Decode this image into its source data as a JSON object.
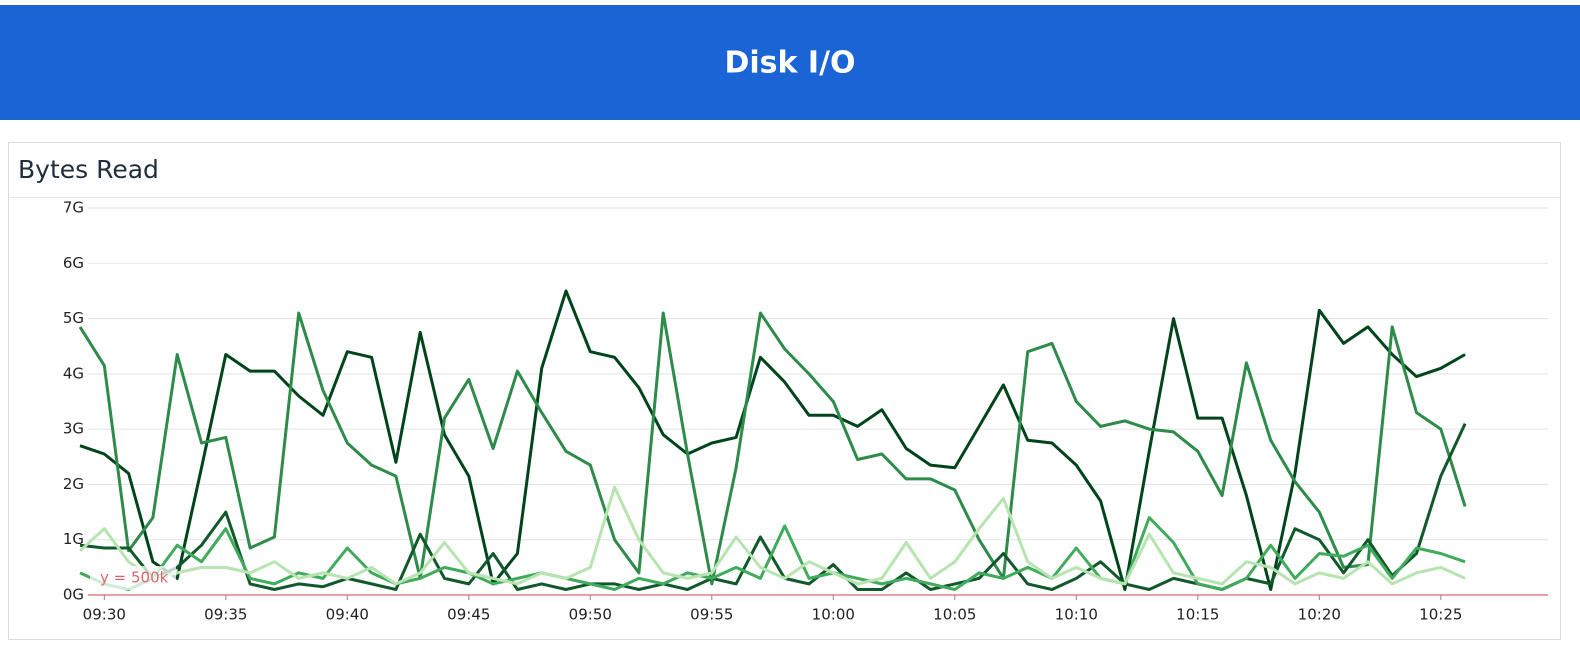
{
  "header": {
    "title": "Disk I/O"
  },
  "chart_data": {
    "type": "line",
    "title": "Bytes Read",
    "x": [
      "09:29",
      "09:30",
      "09:31",
      "09:32",
      "09:33",
      "09:34",
      "09:35",
      "09:36",
      "09:37",
      "09:38",
      "09:39",
      "09:40",
      "09:41",
      "09:42",
      "09:43",
      "09:44",
      "09:45",
      "09:46",
      "09:47",
      "09:48",
      "09:49",
      "09:50",
      "09:51",
      "09:52",
      "09:53",
      "09:54",
      "09:55",
      "09:56",
      "09:57",
      "09:58",
      "09:59",
      "10:00",
      "10:01",
      "10:02",
      "10:03",
      "10:04",
      "10:05",
      "10:06",
      "10:07",
      "10:08",
      "10:09",
      "10:10",
      "10:11",
      "10:12",
      "10:13",
      "10:14",
      "10:15",
      "10:16",
      "10:17",
      "10:18",
      "10:19",
      "10:20",
      "10:21",
      "10:22",
      "10:23",
      "10:24",
      "10:25",
      "10:26"
    ],
    "xticks": [
      "09:30",
      "09:35",
      "09:40",
      "09:45",
      "09:50",
      "09:55",
      "10:00",
      "10:05",
      "10:10",
      "10:15",
      "10:20",
      "10:25"
    ],
    "ylim": [
      0,
      7
    ],
    "yticks": [
      {
        "value": 0,
        "label": "0G"
      },
      {
        "value": 1,
        "label": "1G"
      },
      {
        "value": 2,
        "label": "2G"
      },
      {
        "value": 3,
        "label": "3G"
      },
      {
        "value": 4,
        "label": "4G"
      },
      {
        "value": 5,
        "label": "5G"
      },
      {
        "value": 6,
        "label": "6G"
      },
      {
        "value": 7,
        "label": "7G"
      }
    ],
    "grid": true,
    "annotation": {
      "text": "y = 500k",
      "value": 0.0005,
      "color": "#e0646e"
    },
    "series": [
      {
        "color": "#00441b",
        "values": [
          2.7,
          2.55,
          2.2,
          0.6,
          0.3,
          2.3,
          4.35,
          4.05,
          4.05,
          3.6,
          3.25,
          4.4,
          4.3,
          2.4,
          4.75,
          2.9,
          2.15,
          0.2,
          0.75,
          4.1,
          5.5,
          4.4,
          4.3,
          3.75,
          2.9,
          2.55,
          2.75,
          2.85,
          4.3,
          3.85,
          3.25,
          3.25,
          3.05,
          3.35,
          2.65,
          2.35,
          2.3,
          3.05,
          3.8,
          2.8,
          2.75,
          2.35,
          1.7,
          0.1,
          2.6,
          5.0,
          3.2,
          3.2,
          1.8,
          0.1,
          2.2,
          5.15,
          4.55,
          4.85,
          4.35,
          3.95,
          4.1,
          4.35
        ]
      },
      {
        "color": "#2e8b4a",
        "values": [
          4.85,
          4.15,
          0.8,
          1.4,
          4.35,
          2.75,
          2.85,
          0.85,
          1.05,
          5.1,
          3.7,
          2.75,
          2.35,
          2.15,
          0.3,
          3.2,
          3.9,
          2.65,
          4.05,
          3.3,
          2.6,
          2.35,
          1.0,
          0.4,
          5.1,
          2.55,
          0.2,
          2.3,
          5.1,
          4.45,
          4.0,
          3.5,
          2.45,
          2.55,
          2.1,
          2.1,
          1.9,
          1.0,
          0.3,
          4.4,
          4.55,
          3.5,
          3.05,
          3.15,
          3.0,
          2.95,
          2.6,
          1.8,
          4.2,
          2.8,
          2.05,
          1.5,
          0.5,
          0.55,
          4.85,
          3.3,
          3.0,
          1.6
        ]
      },
      {
        "color": "#11592a",
        "values": [
          0.9,
          0.85,
          0.85,
          0.3,
          0.5,
          0.9,
          1.5,
          0.2,
          0.1,
          0.2,
          0.15,
          0.3,
          0.2,
          0.1,
          1.1,
          0.3,
          0.2,
          0.75,
          0.1,
          0.2,
          0.1,
          0.2,
          0.2,
          0.1,
          0.2,
          0.1,
          0.3,
          0.2,
          1.05,
          0.3,
          0.2,
          0.55,
          0.1,
          0.1,
          0.4,
          0.1,
          0.2,
          0.3,
          0.75,
          0.2,
          0.1,
          0.3,
          0.6,
          0.2,
          0.1,
          0.3,
          0.2,
          0.1,
          0.3,
          0.2,
          1.2,
          1.0,
          0.4,
          1.0,
          0.35,
          0.75,
          2.15,
          3.1
        ]
      },
      {
        "color": "#41ab5d",
        "values": [
          0.4,
          0.2,
          0.1,
          0.3,
          0.9,
          0.6,
          1.2,
          0.3,
          0.2,
          0.4,
          0.3,
          0.85,
          0.4,
          0.2,
          0.3,
          0.5,
          0.4,
          0.2,
          0.3,
          0.4,
          0.3,
          0.2,
          0.1,
          0.3,
          0.2,
          0.4,
          0.3,
          0.5,
          0.3,
          1.25,
          0.3,
          0.4,
          0.3,
          0.2,
          0.3,
          0.2,
          0.1,
          0.4,
          0.3,
          0.5,
          0.3,
          0.85,
          0.3,
          0.2,
          1.4,
          0.95,
          0.2,
          0.1,
          0.3,
          0.9,
          0.3,
          0.75,
          0.7,
          0.9,
          0.3,
          0.85,
          0.75,
          0.6
        ]
      },
      {
        "color": "#b7e4b0",
        "values": [
          0.8,
          1.2,
          0.6,
          0.3,
          0.4,
          0.5,
          0.5,
          0.4,
          0.6,
          0.3,
          0.4,
          0.3,
          0.5,
          0.2,
          0.4,
          0.95,
          0.4,
          0.3,
          0.2,
          0.4,
          0.3,
          0.5,
          1.95,
          1.0,
          0.4,
          0.3,
          0.4,
          1.05,
          0.5,
          0.3,
          0.6,
          0.4,
          0.2,
          0.3,
          0.95,
          0.3,
          0.6,
          1.2,
          1.75,
          0.6,
          0.3,
          0.5,
          0.3,
          0.2,
          1.1,
          0.4,
          0.3,
          0.2,
          0.6,
          0.5,
          0.2,
          0.4,
          0.3,
          0.6,
          0.2,
          0.4,
          0.5,
          0.3
        ]
      }
    ]
  }
}
